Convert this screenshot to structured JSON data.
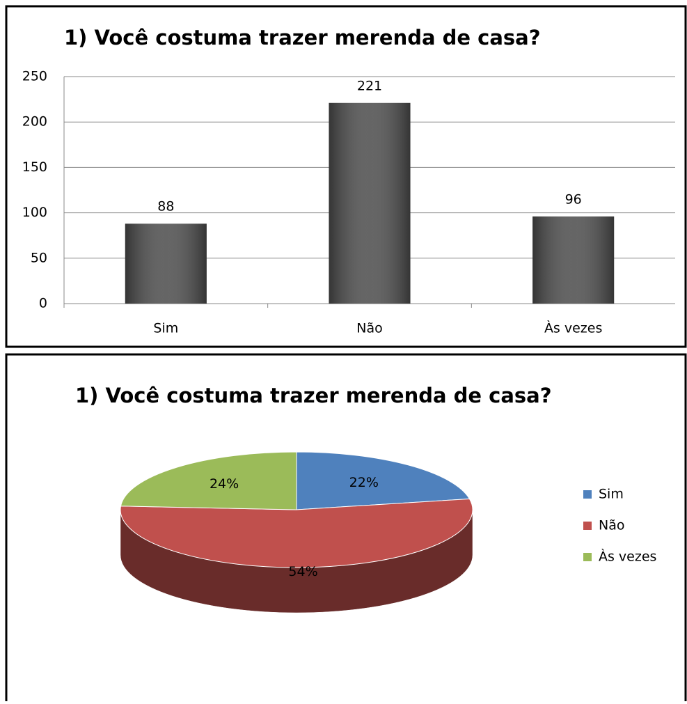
{
  "chart_data": [
    {
      "type": "bar",
      "title": "1) Você costuma trazer merenda de casa?",
      "categories": [
        "Sim",
        "Não",
        "Às vezes"
      ],
      "values": [
        88,
        221,
        96
      ],
      "color": "#505050",
      "ylim": [
        0,
        250
      ],
      "yticks": [
        0,
        50,
        100,
        150,
        200,
        250
      ],
      "grid": true
    },
    {
      "type": "pie",
      "title": "1) Você costuma trazer merenda de casa?",
      "categories": [
        "Sim",
        "Não",
        "Às vezes"
      ],
      "values": [
        22,
        54,
        24
      ],
      "value_labels": [
        "22%",
        "54%",
        "24%"
      ],
      "colors": [
        "#4f81bd",
        "#c0504d",
        "#9bbb59"
      ],
      "legend": "right"
    }
  ]
}
